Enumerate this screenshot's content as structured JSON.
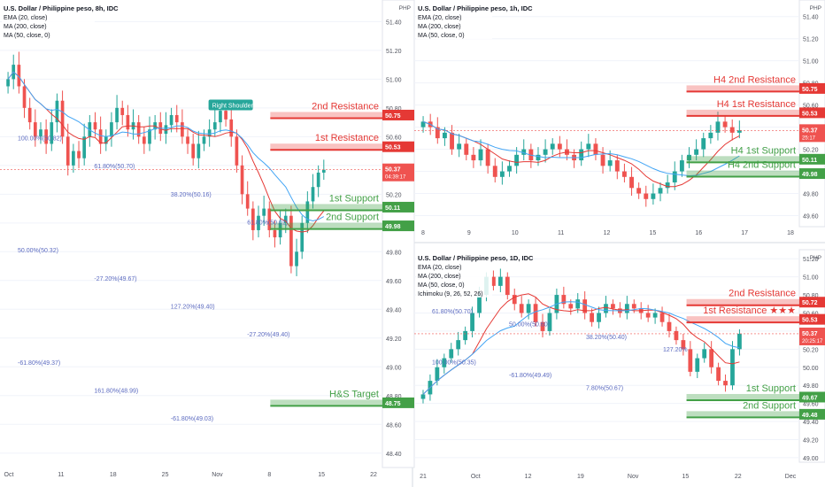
{
  "chart_data": [
    {
      "type": "candlestick",
      "panel": "8h",
      "header": "U.S. Dollar / Philippine peso, 8h, IDC",
      "indicators": [
        "EMA (20, close)",
        "MA (200, close)",
        "MA (50, close, 0)"
      ],
      "currency": "PHP",
      "yticks": [
        "51.40",
        "51.20",
        "51.00",
        "50.80",
        "50.60",
        "50.40",
        "50.20",
        "50.00",
        "49.80",
        "49.60",
        "49.40",
        "49.20",
        "49.00",
        "48.80",
        "48.60",
        "48.40"
      ],
      "xticks": [
        "Oct",
        "11",
        "18",
        "25",
        "Nov",
        "8",
        "15",
        "22"
      ],
      "ylim": [
        48.3,
        51.55
      ],
      "levels": [
        {
          "label": "2nd Resistance",
          "price": 50.75,
          "tag": "50.75",
          "color": "#e53935"
        },
        {
          "label": "1st Resistance",
          "price": 50.53,
          "tag": "50.53",
          "color": "#e53935"
        },
        {
          "label": "1st Support",
          "price": 50.11,
          "tag": "50.11",
          "color": "#43a047"
        },
        {
          "label": "2nd Support",
          "price": 49.98,
          "tag": "49.98",
          "color": "#43a047"
        },
        {
          "label": "H&S Target",
          "price": 48.75,
          "tag": "48.75",
          "color": "#43a047"
        }
      ],
      "current_price": "50.37",
      "countdown": "04:39:17",
      "pattern_label": "Right Shoulder",
      "fib_labels": [
        "100.00%(50.82)",
        "61.80%(50.70)",
        "38.20%(50.16)",
        "61.80%(50.01)",
        "50.00%(50.32)",
        "-27.20%(49.67)",
        "127.20%(49.40)",
        "-27.20%(49.40)",
        "-61.80%(49.37)",
        "161.80%(48.99)",
        "-61.80%(49.03)"
      ],
      "closes": [
        51.0,
        51.1,
        50.95,
        50.8,
        50.7,
        50.6,
        50.65,
        50.55,
        50.7,
        50.85,
        50.6,
        50.4,
        50.5,
        50.45,
        50.6,
        50.7,
        50.65,
        50.55,
        50.6,
        50.7,
        50.8,
        50.75,
        50.65,
        50.7,
        50.6,
        50.55,
        50.65,
        50.7,
        50.62,
        50.68,
        50.75,
        50.7,
        50.6,
        50.55,
        50.45,
        50.55,
        50.6,
        50.65,
        50.7,
        50.78,
        50.72,
        50.6,
        50.4,
        50.2,
        50.1,
        49.95,
        50.05,
        50.1,
        49.95,
        49.9,
        50.0,
        50.05,
        49.7,
        49.8,
        50.0,
        50.15,
        50.25,
        50.35,
        50.37
      ]
    },
    {
      "type": "candlestick",
      "panel": "1h",
      "header": "U.S. Dollar / Philippine peso, 1h, IDC",
      "indicators": [
        "EMA (20, close)",
        "MA (200, close)",
        "MA (50, close, 0)"
      ],
      "currency": "PHP",
      "yticks": [
        "51.40",
        "51.20",
        "51.00",
        "50.80",
        "50.60",
        "50.40",
        "50.20",
        "50.00",
        "49.80",
        "49.60"
      ],
      "xticks": [
        "8",
        "9",
        "10",
        "11",
        "12",
        "15",
        "16",
        "17",
        "18"
      ],
      "ylim": [
        49.5,
        51.55
      ],
      "levels": [
        {
          "label": "H4 2nd Resistance",
          "price": 50.75,
          "tag": "50.75",
          "color": "#e53935"
        },
        {
          "label": "H4 1st Resistance",
          "price": 50.53,
          "tag": "50.53",
          "color": "#e53935"
        },
        {
          "label": "H4 1st Support",
          "price": 50.11,
          "tag": "50.11",
          "color": "#43a047"
        },
        {
          "label": "H4 2nd Support",
          "price": 49.98,
          "tag": "49.98",
          "color": "#43a047"
        }
      ],
      "current_price": "50.37",
      "countdown": "25:17",
      "closes": [
        50.45,
        50.4,
        50.3,
        50.35,
        50.2,
        50.25,
        50.15,
        50.1,
        50.2,
        50.05,
        49.95,
        50.0,
        50.05,
        50.15,
        50.2,
        50.1,
        50.15,
        50.2,
        50.25,
        50.2,
        50.15,
        50.1,
        50.2,
        50.25,
        50.15,
        50.05,
        50.1,
        50.0,
        49.95,
        49.85,
        49.8,
        49.75,
        49.8,
        49.85,
        49.9,
        50.0,
        50.1,
        50.15,
        50.2,
        50.3,
        50.35,
        50.45,
        50.4,
        50.35,
        50.37
      ]
    },
    {
      "type": "candlestick",
      "panel": "1D",
      "header": "U.S. Dollar / Philippine peso, 1D, IDC",
      "indicators": [
        "EMA (20, close)",
        "MA (200, close)",
        "MA (50, close, 0)",
        "Ichimoku (9, 26, 52, 26)"
      ],
      "currency": "PHP",
      "yticks": [
        "51.20",
        "51.00",
        "50.80",
        "50.60",
        "50.40",
        "50.20",
        "50.00",
        "49.80",
        "49.60",
        "49.40",
        "49.20",
        "49.00"
      ],
      "xticks": [
        "21",
        "Oct",
        "12",
        "19",
        "Nov",
        "15",
        "22",
        "Dec"
      ],
      "ylim": [
        48.95,
        51.3
      ],
      "levels": [
        {
          "label": "2nd Resistance",
          "price": 50.72,
          "tag": "50.72",
          "color": "#e53935"
        },
        {
          "label": "1st Resistance ★★★",
          "price": 50.53,
          "tag": "50.53",
          "color": "#e53935"
        },
        {
          "label": "1st Support",
          "price": 49.67,
          "tag": "49.67",
          "color": "#43a047"
        },
        {
          "label": "2nd Support",
          "price": 49.48,
          "tag": "49.48",
          "color": "#43a047"
        }
      ],
      "current_price": "50.37",
      "countdown": "20:25:17",
      "fib_labels": [
        "61.80%(50.70)",
        "50.00%(50.60)",
        "38.20%(50.40)",
        "127.20%",
        "100.00%(50.35)",
        "-61.80%(49.49)",
        "7.80%(50.67)"
      ],
      "closes": [
        49.7,
        49.85,
        50.0,
        50.1,
        50.2,
        50.3,
        50.4,
        50.6,
        50.8,
        51.0,
        50.9,
        51.0,
        50.8,
        50.7,
        50.6,
        50.7,
        50.5,
        50.4,
        50.6,
        50.8,
        50.7,
        50.65,
        50.75,
        50.6,
        50.5,
        50.6,
        50.7,
        50.65,
        50.6,
        50.7,
        50.65,
        50.6,
        50.55,
        50.6,
        50.5,
        50.4,
        50.3,
        50.2,
        49.95,
        50.1,
        50.2,
        50.0,
        49.85,
        49.8,
        50.2,
        50.37
      ]
    }
  ]
}
